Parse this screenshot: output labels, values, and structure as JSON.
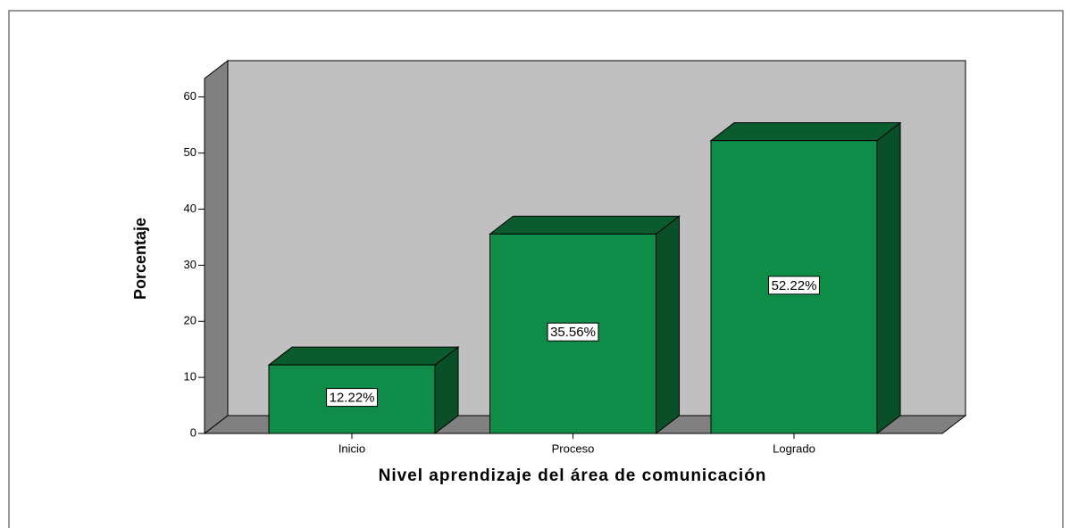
{
  "chart_data": {
    "type": "bar3d",
    "x_label": "Nivel aprendizaje del área de comunicación",
    "y_label": "Porcentaje",
    "categories": [
      "Inicio",
      "Proceso",
      "Logrado"
    ],
    "values": [
      12.22,
      35.56,
      52.22
    ],
    "value_labels": [
      "12.22%",
      "35.56%",
      "52.22%"
    ],
    "color": "#0f8c47",
    "ylim": [
      0,
      63.3
    ],
    "yticks": [
      0,
      10,
      20,
      30,
      40,
      50,
      60
    ]
  }
}
